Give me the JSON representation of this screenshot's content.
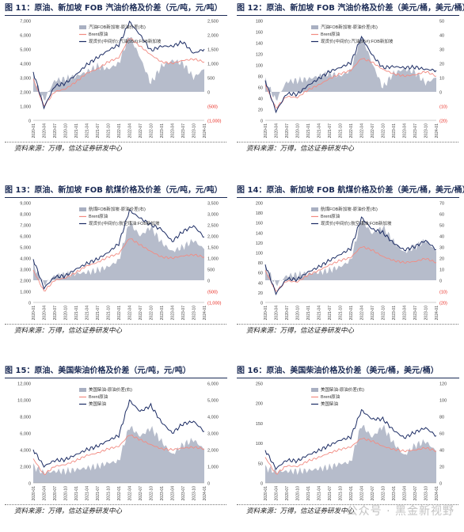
{
  "colors": {
    "title": "#1b2b55",
    "area": "#a9b0c2",
    "red": "#f28b82",
    "navy": "#1c2c64",
    "neg": "#e8261d"
  },
  "source_text": "资料来源：万得，信达证券研发中心",
  "watermark": "公众号 · 黑金新视野",
  "x_ticks": [
    "2020-01",
    "2020-04",
    "2020-07",
    "2020-10",
    "2021-01",
    "2021-04",
    "2021-07",
    "2021-10",
    "2022-01",
    "2022-04",
    "2022-07",
    "2022-10",
    "2023-01",
    "2023-04",
    "2023-07",
    "2023-10",
    "2024-01"
  ],
  "chart_data": [
    {
      "type": "line",
      "title": "图 11：原油、新加坡 FOB 汽油价格及价差（元/吨，元/吨）",
      "ylim": [
        0,
        7000
      ],
      "yticks": [
        "0",
        "1,000",
        "2,000",
        "3,000",
        "4,000",
        "5,000",
        "6,000",
        "7,000"
      ],
      "y2lim": [
        -1000,
        2500
      ],
      "y2ticks": [
        "(1,000)",
        "(500)",
        "0",
        "500",
        "1,000",
        "1,500",
        "2,000",
        "2,500"
      ],
      "legend": [
        "汽油FOB新加坡-原油价差(右)",
        "Brent原油",
        "现货价(中间价):汽油(95#):FOB新加坡"
      ],
      "x": [
        "2020-01",
        "2020-04",
        "2020-07",
        "2020-10",
        "2021-01",
        "2021-04",
        "2021-07",
        "2021-10",
        "2022-01",
        "2022-04",
        "2022-07",
        "2022-10",
        "2023-01",
        "2023-04",
        "2023-07",
        "2023-10",
        "2024-01"
      ],
      "series": [
        {
          "name": "汽油FOB新加坡-原油价差(右)",
          "axis": "right",
          "kind": "area",
          "values": [
            500,
            -300,
            400,
            450,
            550,
            700,
            900,
            800,
            1000,
            2000,
            1200,
            300,
            900,
            1100,
            1000,
            500,
            800
          ]
        },
        {
          "name": "Brent原油",
          "axis": "left",
          "kind": "line",
          "values": [
            2900,
            1000,
            2000,
            2200,
            2700,
            3300,
            3600,
            4100,
            4400,
            5800,
            5200,
            4600,
            4100,
            4000,
            4200,
            4300,
            4100
          ]
        },
        {
          "name": "现货价(中间价):汽油(95#):FOB新加坡",
          "axis": "left",
          "kind": "line",
          "values": [
            3400,
            900,
            2400,
            2600,
            3200,
            3900,
            4400,
            4900,
            5300,
            6900,
            6000,
            4900,
            5200,
            5200,
            5500,
            4700,
            5000
          ]
        }
      ]
    },
    {
      "type": "line",
      "title": "图 12：原油、新加坡 FOB 汽油价格及价差（美元/桶，美元/桶）",
      "ylim": [
        0,
        180
      ],
      "yticks": [
        "0",
        "20",
        "40",
        "60",
        "80",
        "100",
        "120",
        "140",
        "160",
        "180"
      ],
      "y2lim": [
        -20,
        50
      ],
      "y2ticks": [
        "(20)",
        "(10)",
        "0",
        "10",
        "20",
        "30",
        "40",
        "50"
      ],
      "legend": [
        "汽油FOB新加坡-原油价差(右)",
        "Brent原油",
        "现货价(中间价):汽油(95#):FOB新加坡"
      ],
      "x": [
        "2020-01",
        "2020-04",
        "2020-07",
        "2020-10",
        "2021-01",
        "2021-04",
        "2021-07",
        "2021-10",
        "2022-01",
        "2022-04",
        "2022-07",
        "2022-10",
        "2023-01",
        "2023-04",
        "2023-07",
        "2023-10",
        "2024-01"
      ],
      "series": [
        {
          "name": "汽油FOB新加坡-原油价差(右)",
          "axis": "right",
          "kind": "area",
          "values": [
            8,
            -6,
            7,
            8,
            9,
            11,
            13,
            11,
            15,
            40,
            20,
            3,
            13,
            16,
            14,
            6,
            10
          ]
        },
        {
          "name": "Brent原油",
          "axis": "left",
          "kind": "line",
          "values": [
            64,
            22,
            43,
            41,
            55,
            64,
            75,
            84,
            90,
            112,
            105,
            92,
            84,
            80,
            82,
            88,
            80
          ]
        },
        {
          "name": "现货价(中间价):汽油(95#):FOB新加坡",
          "axis": "left",
          "kind": "line",
          "values": [
            72,
            16,
            48,
            47,
            63,
            75,
            88,
            95,
            104,
            150,
            118,
            95,
            97,
            95,
            96,
            92,
            90
          ]
        }
      ]
    },
    {
      "type": "line",
      "title": "图 13：原油、新加坡 FOB 航煤价格及价差（元/吨，元/吨）",
      "ylim": [
        0,
        9000
      ],
      "yticks": [
        "0",
        "1,000",
        "2,000",
        "3,000",
        "4,000",
        "5,000",
        "6,000",
        "7,000",
        "8,000",
        "9,000"
      ],
      "y2lim": [
        -1000,
        3500
      ],
      "y2ticks": [
        "(1,000)",
        "(500)",
        "0",
        "500",
        "1,000",
        "1,500",
        "2,000",
        "2,500",
        "3,000",
        "3,500"
      ],
      "legend": [
        "航煤FOB新加坡-原油价差(右)",
        "Brent原油",
        "现货价(中间价):航空煤油:FOB新加坡"
      ],
      "x": [
        "2020-01",
        "2020-04",
        "2020-07",
        "2020-10",
        "2021-01",
        "2021-04",
        "2021-07",
        "2021-10",
        "2022-01",
        "2022-04",
        "2022-07",
        "2022-10",
        "2023-01",
        "2023-04",
        "2023-07",
        "2023-10",
        "2024-01"
      ],
      "series": [
        {
          "name": "航煤FOB新加坡-原油价差(右)",
          "axis": "right",
          "kind": "area",
          "values": [
            700,
            -200,
            200,
            250,
            300,
            350,
            450,
            600,
            900,
            2600,
            2000,
            2400,
            1700,
            1300,
            1500,
            1800,
            1400
          ]
        },
        {
          "name": "Brent原油",
          "axis": "left",
          "kind": "line",
          "values": [
            2900,
            1000,
            2000,
            2200,
            2700,
            3300,
            3600,
            4100,
            4400,
            5800,
            5200,
            4600,
            4100,
            4000,
            4200,
            4300,
            4100
          ]
        },
        {
          "name": "现货价(中间价):航空煤油:FOB新加坡",
          "axis": "left",
          "kind": "line",
          "values": [
            3900,
            1300,
            2300,
            2400,
            3000,
            3500,
            3900,
            4500,
            5300,
            8300,
            7600,
            7000,
            6600,
            5500,
            6400,
            6900,
            5900
          ]
        }
      ]
    },
    {
      "type": "line",
      "title": "图 14：原油、新加坡 FOB 航煤价格及价差（美元/桶，美元/桶）",
      "ylim": [
        0,
        200
      ],
      "yticks": [
        "0",
        "20",
        "40",
        "60",
        "80",
        "100",
        "120",
        "140",
        "160",
        "180",
        "200"
      ],
      "y2lim": [
        -20,
        70
      ],
      "y2ticks": [
        "(20)",
        "(10)",
        "0",
        "10",
        "20",
        "30",
        "40",
        "50",
        "60",
        "70"
      ],
      "legend": [
        "航煤FOB新加坡-原油价差(右)",
        "Brent原油",
        "现货价(中间价):航空煤油:FOB新加坡"
      ],
      "x": [
        "2020-01",
        "2020-04",
        "2020-07",
        "2020-10",
        "2021-01",
        "2021-04",
        "2021-07",
        "2021-10",
        "2022-01",
        "2022-04",
        "2022-07",
        "2022-10",
        "2023-01",
        "2023-04",
        "2023-07",
        "2023-10",
        "2024-01"
      ],
      "series": [
        {
          "name": "航煤FOB新加坡-原油价差(右)",
          "axis": "right",
          "kind": "area",
          "values": [
            12,
            -4,
            4,
            5,
            6,
            7,
            9,
            12,
            18,
            55,
            42,
            48,
            35,
            25,
            30,
            36,
            26
          ]
        },
        {
          "name": "Brent原油",
          "axis": "left",
          "kind": "line",
          "values": [
            64,
            22,
            43,
            41,
            55,
            64,
            75,
            84,
            90,
            112,
            105,
            92,
            84,
            80,
            82,
            88,
            80
          ]
        },
        {
          "name": "现货价(中间价):航空煤油:FOB新加坡",
          "axis": "left",
          "kind": "line",
          "values": [
            76,
            18,
            47,
            46,
            61,
            71,
            84,
            96,
            108,
            170,
            147,
            140,
            119,
            105,
            112,
            124,
            106
          ]
        }
      ]
    },
    {
      "type": "line",
      "title": "图 15：原油、美国柴油价格及价差（元/吨，元/吨）",
      "ylim": [
        0,
        12000
      ],
      "yticks": [
        "0",
        "2,000",
        "4,000",
        "6,000",
        "8,000",
        "10,000",
        "12,000"
      ],
      "y2lim": [
        0,
        6000
      ],
      "y2ticks": [
        "0",
        "1,000",
        "2,000",
        "3,000",
        "4,000",
        "5,000",
        "6,000"
      ],
      "legend": [
        "美国柴油-原油价差(右)",
        "Brent原油",
        "美国柴油"
      ],
      "x": [
        "2020-01",
        "2020-04",
        "2020-07",
        "2020-10",
        "2021-01",
        "2021-04",
        "2021-07",
        "2021-10",
        "2022-01",
        "2022-04",
        "2022-07",
        "2022-10",
        "2023-01",
        "2023-04",
        "2023-07",
        "2023-10",
        "2024-01"
      ],
      "series": [
        {
          "name": "美国柴油-原油价差(右)",
          "axis": "right",
          "kind": "area",
          "values": [
            1000,
            600,
            700,
            700,
            800,
            900,
            1000,
            1200,
            1300,
            3400,
            2800,
            3300,
            2500,
            1700,
            2300,
            2600,
            2000
          ]
        },
        {
          "name": "Brent原油",
          "axis": "left",
          "kind": "line",
          "values": [
            2900,
            1000,
            2000,
            2200,
            2700,
            3300,
            3600,
            4100,
            4400,
            5800,
            5200,
            4600,
            4100,
            4000,
            4200,
            4300,
            4100
          ]
        },
        {
          "name": "美国柴油",
          "axis": "left",
          "kind": "line",
          "values": [
            4000,
            2000,
            2700,
            2800,
            3400,
            4000,
            4400,
            5100,
            5700,
            9900,
            8600,
            9300,
            7300,
            6000,
            7100,
            7400,
            6200
          ]
        }
      ]
    },
    {
      "type": "line",
      "title": "图 16：原油、美国柴油价格及价差（美元/桶，美元/桶）",
      "ylim": [
        0,
        250
      ],
      "yticks": [
        "0",
        "50",
        "100",
        "150",
        "200",
        "250"
      ],
      "y2lim": [
        0,
        120
      ],
      "y2ticks": [
        "0",
        "20",
        "40",
        "60",
        "80",
        "100",
        "120"
      ],
      "legend": [
        "美国柴油-原油价差(右)",
        "Brent原油",
        "美国柴油"
      ],
      "x": [
        "2020-01",
        "2020-04",
        "2020-07",
        "2020-10",
        "2021-01",
        "2021-04",
        "2021-07",
        "2021-10",
        "2022-01",
        "2022-04",
        "2022-07",
        "2022-10",
        "2023-01",
        "2023-04",
        "2023-07",
        "2023-10",
        "2024-01"
      ],
      "series": [
        {
          "name": "美国柴油-原油价差(右)",
          "axis": "right",
          "kind": "area",
          "values": [
            18,
            14,
            14,
            14,
            15,
            17,
            19,
            23,
            25,
            70,
            55,
            68,
            48,
            33,
            45,
            50,
            38
          ]
        },
        {
          "name": "Brent原油",
          "axis": "left",
          "kind": "line",
          "values": [
            64,
            22,
            43,
            41,
            55,
            64,
            75,
            84,
            90,
            112,
            105,
            92,
            84,
            80,
            82,
            88,
            80
          ]
        },
        {
          "name": "美国柴油",
          "axis": "left",
          "kind": "line",
          "values": [
            82,
            36,
            57,
            55,
            70,
            81,
            94,
            107,
            115,
            182,
            160,
            160,
            132,
            113,
            127,
            138,
            118
          ]
        }
      ]
    }
  ]
}
